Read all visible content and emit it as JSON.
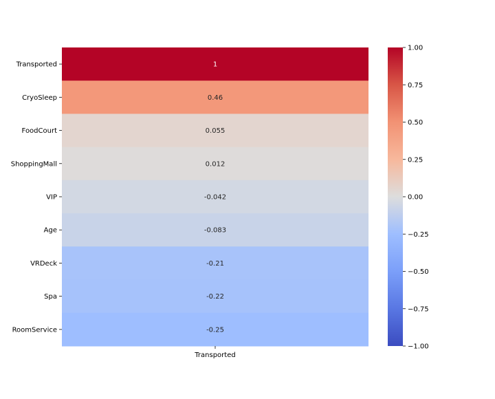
{
  "chart_data": {
    "type": "heatmap",
    "title": "",
    "xlabel": "",
    "ylabel": "",
    "columns": [
      "Transported"
    ],
    "rows": [
      "Transported",
      "CryoSleep",
      "FoodCourt",
      "ShoppingMall",
      "VIP",
      "Age",
      "VRDeck",
      "Spa",
      "RoomService"
    ],
    "values": [
      1,
      0.46,
      0.055,
      0.012,
      -0.042,
      -0.083,
      -0.21,
      -0.22,
      -0.25
    ],
    "annotations": [
      "1",
      "0.46",
      "0.055",
      "0.012",
      "-0.042",
      "-0.083",
      "-0.21",
      "-0.22",
      "-0.25"
    ],
    "colormap": "coolwarm",
    "vmin": -1,
    "vmax": 1,
    "colorbar": {
      "ticks": [
        1.0,
        0.75,
        0.5,
        0.25,
        0.0,
        -0.25,
        -0.5,
        -0.75,
        -1.0
      ],
      "tick_labels": [
        "1.00",
        "0.75",
        "0.50",
        "0.25",
        "0.00",
        "−0.25",
        "−0.50",
        "−0.75",
        "−1.00"
      ]
    },
    "colors": {
      "low": "#3b4cc0",
      "mid": "#dddddd",
      "high": "#b40426",
      "annotation_dark_text": "#262626",
      "annotation_light_text": "#ffffff"
    }
  }
}
